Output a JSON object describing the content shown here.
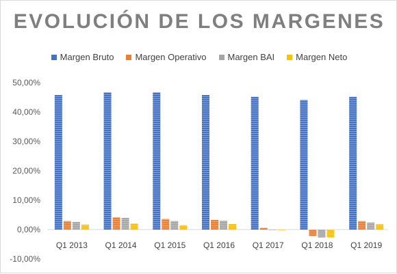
{
  "chart_data": {
    "type": "bar",
    "title": "EVOLUCIÓN DE LOS MARGENES",
    "xlabel": "",
    "ylabel": "",
    "categories": [
      "Q1 2013",
      "Q1 2014",
      "Q1 2015",
      "Q1 2016",
      "Q1 2017",
      "Q1 2018",
      "Q1 2019"
    ],
    "series": [
      {
        "name": "Margen Bruto",
        "color": "#4472c4",
        "values": [
          45.8,
          46.7,
          46.7,
          45.8,
          45.2,
          44.1,
          45.2
        ]
      },
      {
        "name": "Margen Operativo",
        "color": "#ed7d31",
        "values": [
          2.9,
          4.2,
          3.6,
          3.3,
          0.6,
          -2.2,
          2.9
        ]
      },
      {
        "name": "Margen BAI",
        "color": "#a5a5a5",
        "values": [
          2.6,
          4.0,
          2.9,
          3.0,
          -0.1,
          -2.7,
          2.4
        ]
      },
      {
        "name": "Margen Neto",
        "color": "#ffc000",
        "values": [
          1.7,
          2.1,
          1.5,
          1.9,
          -0.1,
          -2.6,
          1.8
        ]
      }
    ],
    "ylim": [
      -10,
      50
    ],
    "yticks": [
      "-10,00%",
      "0,00%",
      "10,00%",
      "20,00%",
      "30,00%",
      "40,00%",
      "50,00%"
    ],
    "grid": false,
    "legend_position": "top"
  }
}
